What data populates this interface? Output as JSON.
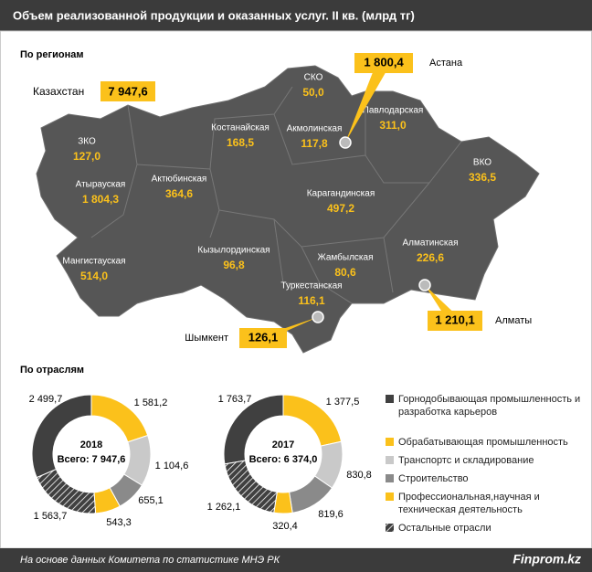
{
  "header": {
    "title": "Объем реализованной продукции и оказанных услуг. II кв. (млрд тг)"
  },
  "regions": {
    "title": "По регионам",
    "total": {
      "name": "Казахстан",
      "value": "7 947,6"
    },
    "items": [
      {
        "name": "СКО",
        "value": "50,0"
      },
      {
        "name": "Костанайская",
        "value": "168,5"
      },
      {
        "name": "Акмолинская",
        "value": "117,8"
      },
      {
        "name": "Павлодарская",
        "value": "311,0"
      },
      {
        "name": "ЗКО",
        "value": "127,0"
      },
      {
        "name": "ВКО",
        "value": "336,5"
      },
      {
        "name": "Атырауская",
        "value": "1 804,3"
      },
      {
        "name": "Актюбинская",
        "value": "364,6"
      },
      {
        "name": "Карагандинская",
        "value": "497,2"
      },
      {
        "name": "Кызылординская",
        "value": "96,8"
      },
      {
        "name": "Алматинская",
        "value": "226,6"
      },
      {
        "name": "Мангистауская",
        "value": "514,0"
      },
      {
        "name": "Жамбылская",
        "value": "80,6"
      },
      {
        "name": "Туркестанская",
        "value": "116,1"
      }
    ],
    "cities": [
      {
        "name": "Астана",
        "value": "1 800,4"
      },
      {
        "name": "Алматы",
        "value": "1 210,1"
      },
      {
        "name": "Шымкент",
        "value": "126,1"
      }
    ]
  },
  "industries": {
    "title": "По отраслям"
  },
  "chart_data": [
    {
      "type": "pie",
      "donut": true,
      "title": "2018",
      "total_label": "Всего: 7 947,6",
      "categories": [
        "Горнодобывающая промышленность и разработка карьеров",
        "Обрабатывающая промышленность",
        "Транспортс и складирование",
        "Строительство",
        "Профессиональная,научная и техническая деятельность",
        "Остальные отрасли"
      ],
      "values": [
        2499.7,
        1581.2,
        1104.6,
        655.1,
        543.3,
        1563.7
      ],
      "value_labels": [
        "2 499,7",
        "1 581,2",
        "1 104,6",
        "655,1",
        "543,3",
        "1 563,7"
      ],
      "colors": [
        "#404040",
        "#fbc11b",
        "#c9c9c9",
        "#8a8a8a",
        "#fbc11b",
        "#404040"
      ],
      "hatched": [
        false,
        false,
        false,
        false,
        false,
        true
      ]
    },
    {
      "type": "pie",
      "donut": true,
      "title": "2017",
      "total_label": "Всего: 6 374,0",
      "categories": [
        "Горнодобывающая промышленность и разработка карьеров",
        "Обрабатывающая промышленность",
        "Транспортс и складирование",
        "Строительство",
        "Профессиональная,научная и техническая деятельность",
        "Остальные отрасли"
      ],
      "values": [
        1763.7,
        1377.5,
        830.8,
        819.6,
        320.4,
        1262.1
      ],
      "value_labels": [
        "1 763,7",
        "1 377,5",
        "830,8",
        "819,6",
        "320,4",
        "1 262,1"
      ],
      "colors": [
        "#404040",
        "#fbc11b",
        "#c9c9c9",
        "#8a8a8a",
        "#fbc11b",
        "#404040"
      ],
      "hatched": [
        false,
        false,
        false,
        false,
        false,
        true
      ]
    }
  ],
  "footer": {
    "source": "На основе данных Комитета по статистике МНЭ РК",
    "brand": "Finprom.kz"
  }
}
